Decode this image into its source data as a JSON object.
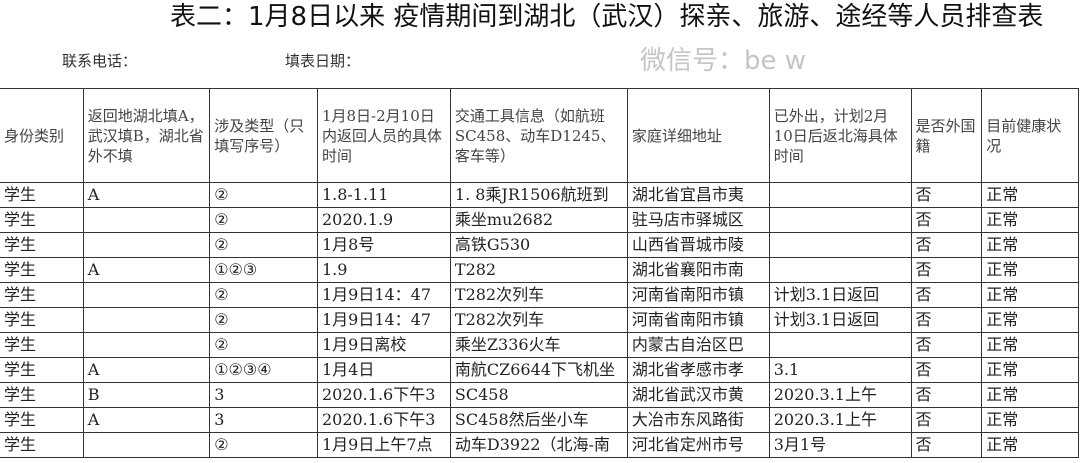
{
  "title": "表二：1月8日以来 疫情期间到湖北（武汉）探亲、旅游、途经等人员排查表",
  "contact_label": "联系电话：",
  "date_label": "填表日期：",
  "headers": [
    "身份类别",
    "返回地湖北填A，武汉填B，湖北省外不填",
    "涉及类型（只填写序号）",
    "1月8日-2月10日内返回人员的具体时间",
    "交通工具信息（如航班SC458、动车D1245、客车等）",
    "家庭详细地址",
    "已外出，计划2月10日后返北海具体时间",
    "是否外国籍",
    "目前健康状况"
  ],
  "rows": [
    [
      "学生",
      "A",
      "②",
      "1.8-1.11",
      "1. 8乘JR1506航班到",
      "湖北省宜昌市夷",
      "",
      "否",
      "正常"
    ],
    [
      "学生",
      "",
      "②",
      "2020.1.9",
      "乘坐mu2682",
      "驻马店市驿城区",
      "",
      "否",
      "正常"
    ],
    [
      "学生",
      "",
      "②",
      "1月8号",
      "高铁G530",
      "山西省晋城市陵",
      "",
      "否",
      "正常"
    ],
    [
      "学生",
      "A",
      "①②③",
      "1.9",
      "T282",
      "湖北省襄阳市南",
      "",
      "否",
      "正常"
    ],
    [
      "学生",
      "",
      "②",
      "1月9日14：47",
      "T282次列车",
      "河南省南阳市镇",
      "计划3.1日返回",
      "否",
      "正常"
    ],
    [
      "学生",
      "",
      "②",
      "1月9日14：47",
      "T282次列车",
      "河南省南阳市镇",
      "计划3.1日返回",
      "否",
      "正常"
    ],
    [
      "学生",
      "",
      "②",
      "1月9日离校",
      "乘坐Z336火车",
      "内蒙古自治区巴",
      "",
      "否",
      "正常"
    ],
    [
      "学生",
      "A",
      "①②③④",
      "1月4日",
      "南航CZ6644下飞机坐",
      "湖北省孝感市孝",
      "3.1",
      "否",
      "正常"
    ],
    [
      "学生",
      "B",
      "3",
      "2020.1.6下午3",
      "SC458",
      "湖北省武汉市黄",
      "2020.3.1上午",
      "否",
      "正常"
    ],
    [
      "学生",
      "A",
      "3",
      "2020.1.6下午3",
      "SC458然后坐小车",
      "大冶市东风路街",
      "2020.3.1上午",
      "否",
      "正常"
    ],
    [
      "学生",
      "",
      "②",
      "1月9日上午7点",
      "动车D3922（北海-南",
      "河北省定州市号",
      "3月1号",
      "否",
      "正常"
    ]
  ],
  "watermark": "微信号：be    w"
}
